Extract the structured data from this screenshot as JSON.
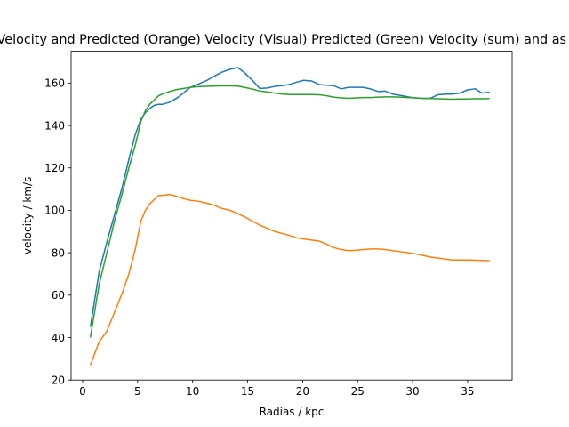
{
  "chart_data": {
    "type": "line",
    "title": "Observed (Blue) Velocity and Predicted (Orange) Velocity (Visual) Predicted (Green) Velocity (sum) and  as a function of radias",
    "xlabel": "Radias / kpc",
    "ylabel": "velocity / km/s",
    "xlim": [
      -1.05,
      39.05
    ],
    "ylim": [
      20,
      175
    ],
    "xticks": [
      0,
      5,
      10,
      15,
      20,
      25,
      30,
      35
    ],
    "yticks": [
      20,
      40,
      60,
      80,
      100,
      120,
      140,
      160
    ],
    "grid": false,
    "series": [
      {
        "color": "#1f77b4",
        "x": [
          0.7,
          1.5,
          2.2,
          2.9,
          3.6,
          4.2,
          4.8,
          5.3,
          5.7,
          6.1,
          6.5,
          6.9,
          7.3,
          7.9,
          8.6,
          9.2,
          9.8,
          10.5,
          11.2,
          11.9,
          12.6,
          13.4,
          14.1,
          14.7,
          15.4,
          16.1,
          16.8,
          17.5,
          18.2,
          18.9,
          19.5,
          20.1,
          20.8,
          21.5,
          22.2,
          22.8,
          23.5,
          24.2,
          24.9,
          25.5,
          26.2,
          26.9,
          27.5,
          28.2,
          28.9,
          29.6,
          30.2,
          30.9,
          31.6,
          32.3,
          33.0,
          33.6,
          34.3,
          35.0,
          35.7,
          36.3,
          37.0
        ],
        "values": [
          45,
          71,
          85,
          98,
          111,
          124,
          136,
          143,
          146,
          148,
          149.5,
          150,
          150,
          151,
          153,
          155.5,
          158,
          159.5,
          161,
          163,
          165,
          166.5,
          167.3,
          165,
          161.5,
          157.5,
          157.7,
          158.5,
          158.8,
          159.5,
          160.5,
          161.3,
          161,
          159.3,
          159,
          158.8,
          157.3,
          158,
          158,
          158,
          157.2,
          156,
          156.2,
          154.8,
          154.2,
          153.5,
          153,
          152.8,
          152.8,
          154.5,
          154.8,
          154.8,
          155.3,
          156.8,
          157.3,
          155.3,
          155.7
        ]
      },
      {
        "color": "#ff7f0e",
        "x": [
          0.7,
          1.5,
          2.2,
          2.9,
          3.6,
          4.2,
          4.8,
          5.3,
          5.7,
          6.1,
          6.5,
          6.9,
          7.3,
          7.9,
          8.6,
          9.2,
          9.8,
          10.5,
          11.2,
          11.9,
          12.6,
          13.4,
          14.1,
          14.7,
          15.4,
          16.1,
          16.8,
          17.5,
          18.2,
          18.9,
          19.5,
          20.1,
          20.8,
          21.5,
          22.2,
          22.8,
          23.5,
          24.2,
          24.9,
          25.5,
          26.2,
          26.9,
          27.5,
          28.2,
          28.9,
          29.6,
          30.2,
          30.9,
          31.6,
          32.3,
          33.0,
          33.6,
          34.3,
          35.0,
          35.7,
          36.3,
          37.0
        ],
        "values": [
          27,
          38,
          43,
          52,
          61,
          70,
          82,
          95,
          100,
          103,
          105,
          107,
          107,
          107.5,
          106.5,
          105.5,
          104.7,
          104.3,
          103.5,
          102.5,
          101,
          100,
          98.5,
          97,
          95,
          93,
          91.5,
          90,
          89,
          88,
          87,
          86.5,
          86,
          85.5,
          84,
          82.5,
          81.5,
          81,
          81.2,
          81.5,
          81.8,
          81.8,
          81.5,
          81,
          80.5,
          80,
          79.5,
          78.8,
          78,
          77.5,
          77,
          76.6,
          76.6,
          76.6,
          76.5,
          76.4,
          76.3
        ]
      },
      {
        "color": "#2ca02c",
        "x": [
          0.7,
          1.5,
          2.2,
          2.9,
          3.6,
          4.2,
          4.8,
          5.3,
          5.7,
          6.1,
          6.5,
          6.9,
          7.3,
          7.9,
          8.6,
          9.2,
          9.8,
          10.5,
          11.2,
          11.9,
          12.6,
          13.4,
          14.1,
          14.7,
          15.4,
          16.1,
          16.8,
          17.5,
          18.2,
          18.9,
          19.5,
          20.1,
          20.8,
          21.5,
          22.2,
          22.8,
          23.5,
          24.2,
          24.9,
          25.5,
          26.2,
          26.9,
          27.5,
          28.2,
          28.9,
          29.6,
          30.2,
          30.9,
          31.6,
          32.3,
          33.0,
          33.6,
          34.3,
          35.0,
          35.7,
          36.3,
          37.0
        ],
        "values": [
          40,
          65,
          80,
          95,
          108,
          120,
          131,
          142,
          147,
          150,
          152,
          154,
          155,
          156,
          157,
          157.5,
          158,
          158.3,
          158.5,
          158.6,
          158.7,
          158.7,
          158.6,
          158,
          157.2,
          156.3,
          155.8,
          155.3,
          154.8,
          154.6,
          154.6,
          154.6,
          154.6,
          154.5,
          154,
          153.4,
          153,
          152.8,
          153,
          153.2,
          153.2,
          153.4,
          153.5,
          153.5,
          153.4,
          153.2,
          153,
          152.8,
          152.7,
          152.6,
          152.5,
          152.4,
          152.5,
          152.5,
          152.6,
          152.6,
          152.7
        ]
      }
    ]
  }
}
